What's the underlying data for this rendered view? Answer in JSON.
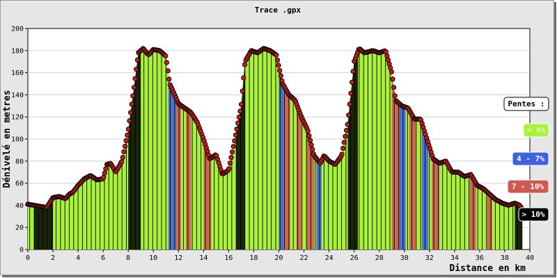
{
  "chart_data": {
    "type": "area",
    "title": "Trace .gpx",
    "xlabel": "Distance en km",
    "ylabel": "Dénivelé en metres",
    "xlim": [
      0,
      40
    ],
    "ylim": [
      0,
      200
    ],
    "x_ticks": [
      0,
      2,
      4,
      6,
      8,
      10,
      12,
      14,
      16,
      18,
      20,
      22,
      24,
      26,
      28,
      30,
      32,
      34,
      36,
      38,
      40
    ],
    "y_ticks": [
      0,
      20,
      40,
      60,
      80,
      100,
      120,
      140,
      160,
      180,
      200
    ],
    "grid": true,
    "profile": [
      [
        0,
        41
      ],
      [
        0.5,
        40
      ],
      [
        1.0,
        39
      ],
      [
        1.5,
        38
      ],
      [
        2.0,
        47
      ],
      [
        2.5,
        48
      ],
      [
        3.0,
        46
      ],
      [
        3.3,
        50
      ],
      [
        3.6,
        52
      ],
      [
        4.0,
        58
      ],
      [
        4.5,
        64
      ],
      [
        5.0,
        67
      ],
      [
        5.5,
        63
      ],
      [
        6.0,
        64
      ],
      [
        6.3,
        77
      ],
      [
        6.6,
        78
      ],
      [
        7.0,
        70
      ],
      [
        7.5,
        80
      ],
      [
        8.0,
        108
      ],
      [
        8.5,
        150
      ],
      [
        8.8,
        178
      ],
      [
        9.2,
        182
      ],
      [
        9.6,
        176
      ],
      [
        10.0,
        181
      ],
      [
        10.5,
        180
      ],
      [
        11.0,
        175
      ],
      [
        11.3,
        150
      ],
      [
        11.7,
        140
      ],
      [
        12.0,
        132
      ],
      [
        12.5,
        128
      ],
      [
        13.0,
        124
      ],
      [
        13.5,
        115
      ],
      [
        14.0,
        100
      ],
      [
        14.5,
        82
      ],
      [
        15.0,
        86
      ],
      [
        15.5,
        68
      ],
      [
        16.0,
        72
      ],
      [
        16.5,
        100
      ],
      [
        17.0,
        130
      ],
      [
        17.3,
        170
      ],
      [
        17.8,
        180
      ],
      [
        18.3,
        178
      ],
      [
        18.8,
        182
      ],
      [
        19.3,
        180
      ],
      [
        19.8,
        176
      ],
      [
        20.3,
        150
      ],
      [
        20.8,
        140
      ],
      [
        21.3,
        135
      ],
      [
        21.8,
        120
      ],
      [
        22.3,
        108
      ],
      [
        22.8,
        85
      ],
      [
        23.3,
        78
      ],
      [
        23.6,
        85
      ],
      [
        24.0,
        80
      ],
      [
        24.5,
        77
      ],
      [
        25.0,
        85
      ],
      [
        25.5,
        115
      ],
      [
        26.0,
        170
      ],
      [
        26.4,
        182
      ],
      [
        26.8,
        178
      ],
      [
        27.5,
        180
      ],
      [
        28.0,
        178
      ],
      [
        28.5,
        180
      ],
      [
        29.0,
        160
      ],
      [
        29.3,
        135
      ],
      [
        29.8,
        130
      ],
      [
        30.3,
        128
      ],
      [
        30.8,
        118
      ],
      [
        31.3,
        118
      ],
      [
        31.8,
        100
      ],
      [
        32.3,
        82
      ],
      [
        32.8,
        78
      ],
      [
        33.3,
        80
      ],
      [
        33.8,
        70
      ],
      [
        34.3,
        70
      ],
      [
        34.8,
        66
      ],
      [
        35.3,
        68
      ],
      [
        35.8,
        58
      ],
      [
        36.3,
        55
      ],
      [
        36.8,
        50
      ],
      [
        37.3,
        45
      ],
      [
        37.8,
        42
      ],
      [
        38.3,
        40
      ],
      [
        38.8,
        42
      ],
      [
        39.2,
        40
      ],
      [
        39.4,
        36
      ]
    ],
    "legend": {
      "title": "Pentes :",
      "items": [
        {
          "label": "< 4%",
          "color": "#aaf23a"
        },
        {
          "label": "4 - 7%",
          "color": "#3f63e0"
        },
        {
          "label": "7 - 10%",
          "color": "#cf5a54"
        },
        {
          "label": "> 10%",
          "color": "#000000"
        }
      ]
    },
    "colors": {
      "fill": "#aaf23a",
      "marker": "#d11b1b",
      "blue": "#3f63e0",
      "red": "#cf5a54",
      "black": "#000000"
    },
    "slope_bands": [
      {
        "x0": 0.5,
        "x1": 2.0,
        "category": "black"
      },
      {
        "x0": 8.0,
        "x1": 9.0,
        "category": "black"
      },
      {
        "x0": 11.2,
        "x1": 11.8,
        "category": "blue"
      },
      {
        "x0": 11.8,
        "x1": 12.2,
        "category": "red"
      },
      {
        "x0": 12.6,
        "x1": 13.0,
        "category": "red"
      },
      {
        "x0": 14.0,
        "x1": 14.6,
        "category": "red"
      },
      {
        "x0": 16.6,
        "x1": 17.3,
        "category": "black"
      },
      {
        "x0": 20.0,
        "x1": 20.4,
        "category": "blue"
      },
      {
        "x0": 20.4,
        "x1": 20.9,
        "category": "red"
      },
      {
        "x0": 21.4,
        "x1": 21.8,
        "category": "red"
      },
      {
        "x0": 22.2,
        "x1": 22.8,
        "category": "red"
      },
      {
        "x0": 23.0,
        "x1": 23.4,
        "category": "blue"
      },
      {
        "x0": 25.5,
        "x1": 26.3,
        "category": "black"
      },
      {
        "x0": 29.0,
        "x1": 29.6,
        "category": "red"
      },
      {
        "x0": 29.6,
        "x1": 30.1,
        "category": "blue"
      },
      {
        "x0": 30.4,
        "x1": 30.9,
        "category": "red"
      },
      {
        "x0": 31.4,
        "x1": 31.9,
        "category": "blue"
      },
      {
        "x0": 32.2,
        "x1": 32.8,
        "category": "red"
      },
      {
        "x0": 35.2,
        "x1": 35.7,
        "category": "red"
      },
      {
        "x0": 36.6,
        "x1": 37.0,
        "category": "red"
      },
      {
        "x0": 38.8,
        "x1": 39.4,
        "category": "black"
      }
    ]
  }
}
